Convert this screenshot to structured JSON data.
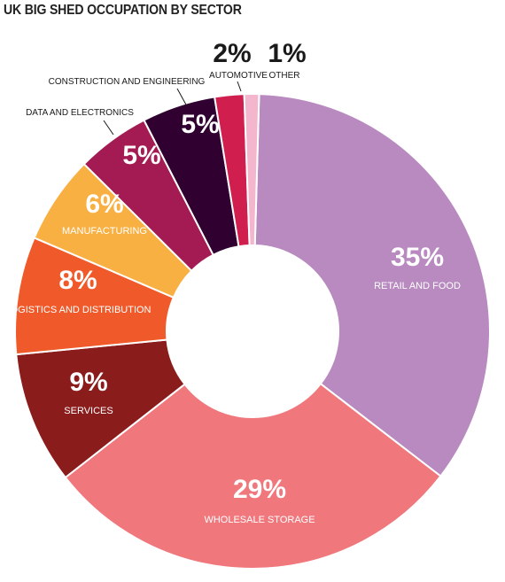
{
  "chart_data": {
    "type": "pie",
    "title": "UK BIG SHED OCCUPATION BY SECTOR",
    "slices": [
      {
        "label": "RETAIL AND FOOD",
        "value": 35,
        "value_label": "35%",
        "color": "#b88ac0"
      },
      {
        "label": "WHOLESALE STORAGE",
        "value": 29,
        "value_label": "29%",
        "color": "#f0777c"
      },
      {
        "label": "SERVICES",
        "value": 9,
        "value_label": "9%",
        "color": "#8b1c1c"
      },
      {
        "label": "LOGISTICS AND DISTRIBUTION",
        "value": 8,
        "value_label": "8%",
        "color": "#f05a2a"
      },
      {
        "label": "MANUFACTURING",
        "value": 6,
        "value_label": "6%",
        "color": "#f9b043"
      },
      {
        "label": "DATA AND ELECTRONICS",
        "value": 5,
        "value_label": "5%",
        "color": "#a31b52"
      },
      {
        "label": "CONSTRUCTION AND ENGINEERING",
        "value": 5,
        "value_label": "5%",
        "color": "#2f0030"
      },
      {
        "label": "AUTOMOTIVE",
        "value": 2,
        "value_label": "2%",
        "color": "#d01f4e"
      },
      {
        "label": "OTHER",
        "value": 1,
        "value_label": "1%",
        "color": "#f4b6cc"
      }
    ]
  }
}
